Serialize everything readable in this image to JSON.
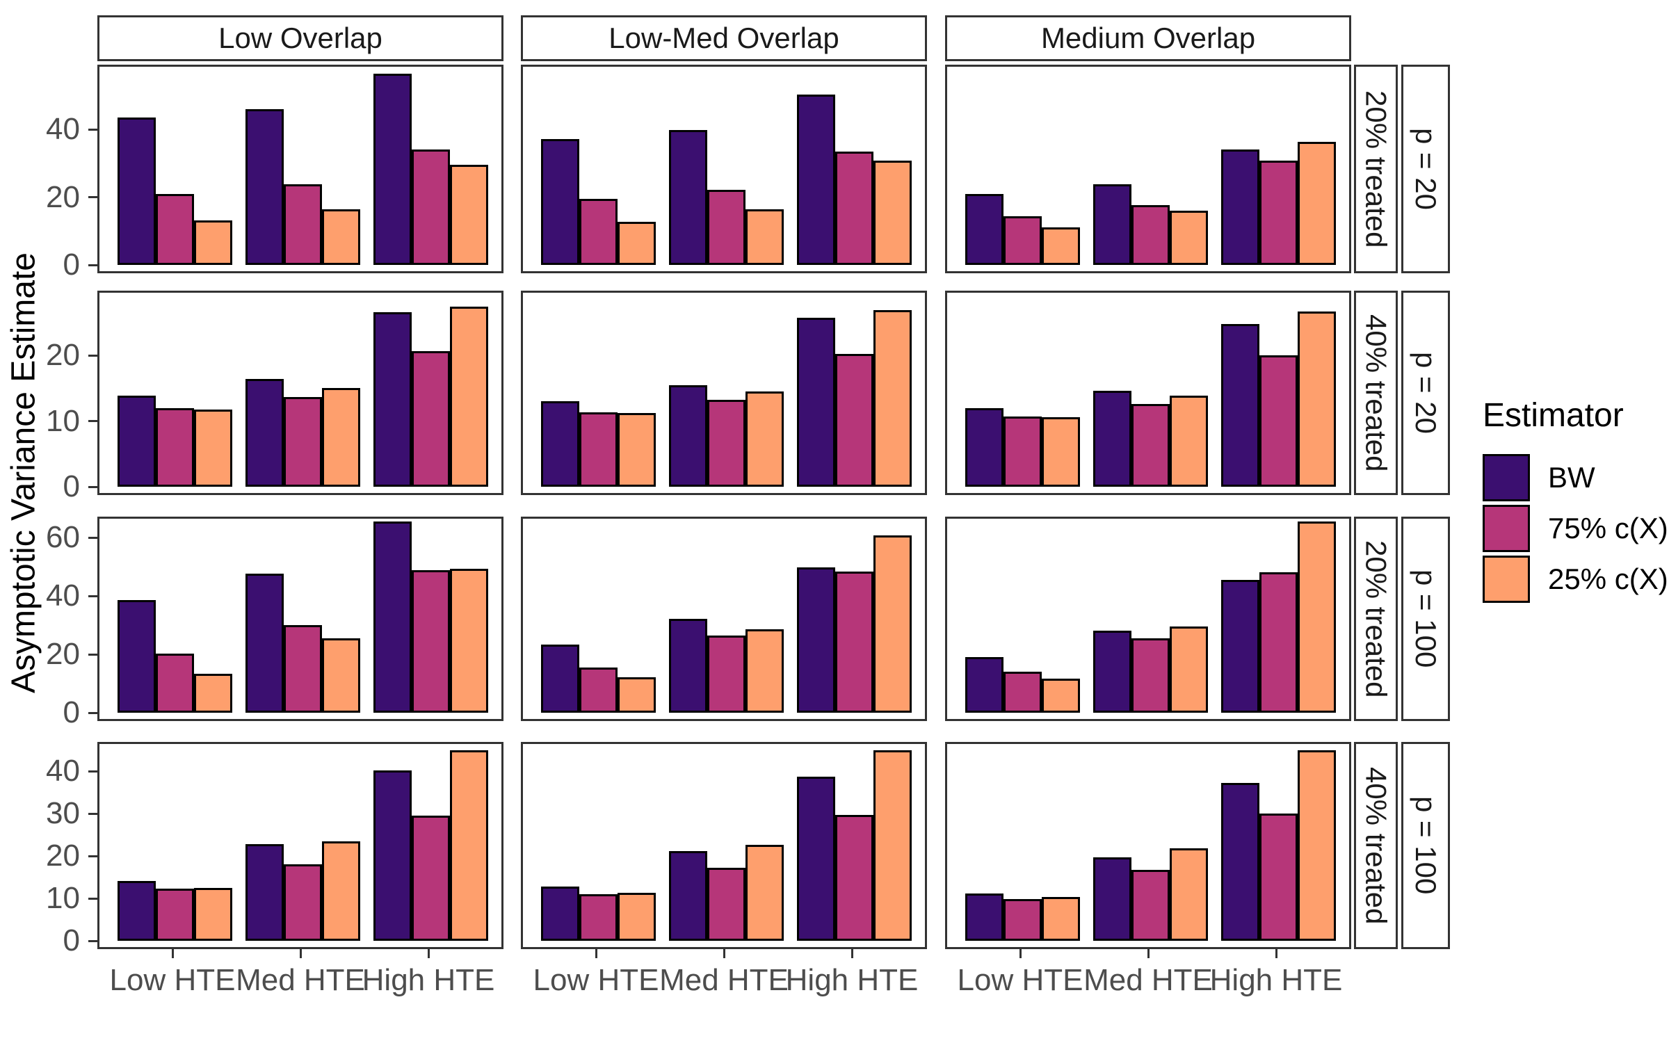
{
  "figure": {
    "ylabel": "Asymptotic Variance Estimate"
  },
  "legend": {
    "title": "Estimator",
    "items": [
      {
        "label": "BW",
        "color": "#3B0F70"
      },
      {
        "label": "75% c(X)",
        "color": "#B63679"
      },
      {
        "label": "25% c(X)",
        "color": "#FE9F6D"
      }
    ]
  },
  "chart_data": {
    "type": "bar",
    "title": "",
    "xlabel": "",
    "ylabel": "Asymptotic Variance Estimate",
    "grid": "off",
    "legend_title": "Estimator",
    "legend_position": "right",
    "categories": [
      "Low HTE",
      "Med HTE",
      "High HTE"
    ],
    "series_names": [
      "BW",
      "75% c(X)",
      "25% c(X)"
    ],
    "series_colors": [
      "#3B0F70",
      "#B63679",
      "#FE9F6D"
    ],
    "col_facets": [
      "Low Overlap",
      "Low-Med Overlap",
      "Medium Overlap"
    ],
    "row_facets": [
      {
        "treated": "20% treated",
        "p": "p = 20",
        "yticks": [
          0,
          20,
          40
        ],
        "ymax": 55.5
      },
      {
        "treated": "40% treated",
        "p": "p = 20",
        "yticks": [
          0,
          10,
          20
        ],
        "ymax": 28
      },
      {
        "treated": "20% treated",
        "p": "p = 100",
        "yticks": [
          0,
          20,
          40,
          60
        ],
        "ymax": 63
      },
      {
        "treated": "40% treated",
        "p": "p = 100",
        "yticks": [
          0,
          10,
          20,
          30,
          40
        ],
        "ymax": 44
      }
    ],
    "values_by_row_col_group_series": [
      [
        [
          [
            43.5,
            21.0,
            13.2
          ],
          [
            46.0,
            23.9,
            16.5
          ],
          [
            56.5,
            34.2,
            29.7
          ]
        ],
        [
          [
            37.3,
            19.5,
            12.7
          ],
          [
            39.9,
            22.3,
            16.4
          ],
          [
            50.4,
            33.6,
            30.9
          ]
        ],
        [
          [
            21.0,
            14.4,
            11.1
          ],
          [
            23.9,
            17.7,
            16.0
          ],
          [
            34.2,
            30.9,
            36.4
          ]
        ]
      ],
      [
        [
          [
            13.9,
            12.0,
            11.8
          ],
          [
            16.4,
            13.7,
            15.0
          ],
          [
            26.6,
            20.6,
            27.4
          ]
        ],
        [
          [
            13.0,
            11.3,
            11.2
          ],
          [
            15.5,
            13.2,
            14.5
          ],
          [
            25.7,
            20.2,
            26.9
          ]
        ],
        [
          [
            12.0,
            10.7,
            10.6
          ],
          [
            14.6,
            12.6,
            13.9
          ],
          [
            24.8,
            20.0,
            26.7
          ]
        ]
      ],
      [
        [
          [
            38.7,
            20.2,
            13.4
          ],
          [
            47.6,
            29.9,
            25.5
          ],
          [
            65.5,
            48.8,
            49.3
          ]
        ],
        [
          [
            23.3,
            15.6,
            12.1
          ],
          [
            32.1,
            26.5,
            28.5
          ],
          [
            49.8,
            48.4,
            60.8
          ]
        ],
        [
          [
            19.0,
            14.1,
            11.6
          ],
          [
            28.1,
            25.6,
            29.6
          ],
          [
            45.6,
            48.2,
            65.6
          ]
        ]
      ],
      [
        [
          [
            14.1,
            12.3,
            12.4
          ],
          [
            22.8,
            18.1,
            23.4
          ],
          [
            40.2,
            29.6,
            45.0
          ]
        ],
        [
          [
            12.8,
            11.0,
            11.3
          ],
          [
            21.2,
            17.2,
            22.6
          ],
          [
            38.7,
            29.7,
            45.0
          ]
        ],
        [
          [
            11.1,
            9.9,
            10.3
          ],
          [
            19.7,
            16.7,
            21.9
          ],
          [
            37.2,
            30.1,
            45.0
          ]
        ]
      ]
    ]
  }
}
